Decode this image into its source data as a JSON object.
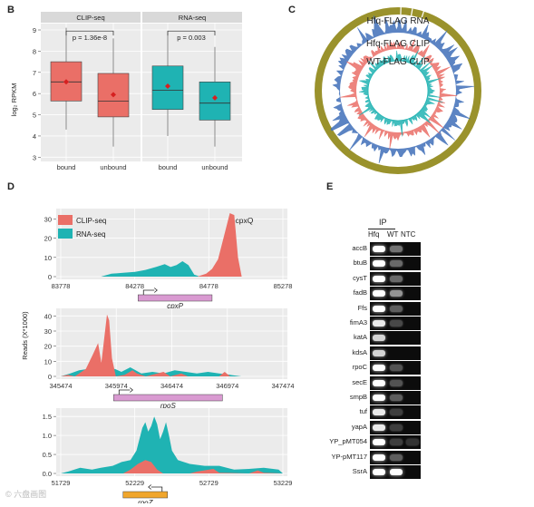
{
  "panels": {
    "B": "B",
    "C": "C",
    "D": "D",
    "E": "E"
  },
  "panel_b": {
    "ylabel": "log₂ RPKM",
    "y_ticks": [
      "3",
      "4",
      "5",
      "6",
      "7",
      "8",
      "9"
    ],
    "facets": [
      {
        "title": "CLIP-seq",
        "pvalue": "p = 1.36e-8",
        "color": "#ea6f67",
        "boxes": [
          {
            "label": "bound",
            "q1": 5.65,
            "median": 6.55,
            "q3": 7.5,
            "min": 4.3,
            "max": 9.1,
            "mean": 6.55
          },
          {
            "label": "unbound",
            "q1": 4.9,
            "median": 5.65,
            "q3": 6.95,
            "min": 3.5,
            "max": 8.6,
            "mean": 5.95
          }
        ]
      },
      {
        "title": "RNA-seq",
        "pvalue": "p = 0.003",
        "color": "#1fb3b3",
        "boxes": [
          {
            "label": "bound",
            "q1": 5.25,
            "median": 6.15,
            "q3": 7.3,
            "min": 4.0,
            "max": 8.9,
            "mean": 6.35
          },
          {
            "label": "unbound",
            "q1": 4.75,
            "median": 5.55,
            "q3": 6.55,
            "min": 3.5,
            "max": 8.2,
            "mean": 5.8
          }
        ]
      }
    ]
  },
  "panel_c": {
    "rings": [
      "Hfq-FLAG RNA",
      "Hfq-FLAG CLIP",
      "WT-FLAG CLIP"
    ],
    "colors": {
      "outer": "#9a922c",
      "rna": "#3f6fb8",
      "clip": "#ea6f67",
      "wt": "#21b3b3"
    }
  },
  "panel_d": {
    "ylabel": "Reads (X*1000)",
    "legend": [
      "CLIP-seq",
      "RNA-seq"
    ],
    "tracks": [
      {
        "y_ticks": [
          "0",
          "10",
          "20",
          "30"
        ],
        "ymax": 33,
        "x_ticks": [
          "83778",
          "84278",
          "84778",
          "85278"
        ],
        "xmin": 83778,
        "xmax": 85278,
        "gene": "cpxP",
        "gene_start": 84300,
        "gene_end": 84800,
        "peak_label": "cpxQ",
        "gene_color": "#d99ad1",
        "rna": [
          [
            83778,
            0
          ],
          [
            84050,
            0
          ],
          [
            84120,
            1.5
          ],
          [
            84200,
            2
          ],
          [
            84280,
            2.5
          ],
          [
            84350,
            3.5
          ],
          [
            84420,
            5
          ],
          [
            84480,
            6.5
          ],
          [
            84520,
            5
          ],
          [
            84560,
            6
          ],
          [
            84600,
            8
          ],
          [
            84640,
            6
          ],
          [
            84680,
            1
          ],
          [
            84720,
            0
          ],
          [
            85278,
            0
          ]
        ],
        "clip": [
          [
            83778,
            0
          ],
          [
            84700,
            0
          ],
          [
            84760,
            1.5
          ],
          [
            84800,
            4
          ],
          [
            84840,
            9
          ],
          [
            84880,
            21
          ],
          [
            84920,
            33
          ],
          [
            84950,
            32
          ],
          [
            84975,
            10
          ],
          [
            85000,
            0
          ],
          [
            85278,
            0
          ]
        ]
      },
      {
        "y_ticks": [
          "0",
          "10",
          "20",
          "30",
          "40"
        ],
        "ymax": 42,
        "x_ticks": [
          "345474",
          "345974",
          "346474",
          "346974",
          "347474"
        ],
        "xmin": 345474,
        "xmax": 347474,
        "gene": "rpoS",
        "gene_start": 345950,
        "gene_end": 346930,
        "gene_color": "#d99ad1",
        "rna": [
          [
            345474,
            0
          ],
          [
            345560,
            2
          ],
          [
            345640,
            4
          ],
          [
            345720,
            5
          ],
          [
            345800,
            6
          ],
          [
            345850,
            3
          ],
          [
            345900,
            2
          ],
          [
            345960,
            5
          ],
          [
            346020,
            3
          ],
          [
            346100,
            6
          ],
          [
            346200,
            2
          ],
          [
            346300,
            3
          ],
          [
            346400,
            2
          ],
          [
            346500,
            4
          ],
          [
            346600,
            3
          ],
          [
            346700,
            2
          ],
          [
            346800,
            3
          ],
          [
            346900,
            2
          ],
          [
            347000,
            1
          ],
          [
            347100,
            0
          ],
          [
            347474,
            0
          ]
        ],
        "clip": [
          [
            345474,
            0
          ],
          [
            345540,
            1
          ],
          [
            345600,
            0
          ],
          [
            345700,
            5
          ],
          [
            345760,
            14
          ],
          [
            345810,
            22
          ],
          [
            345840,
            9
          ],
          [
            345870,
            28
          ],
          [
            345890,
            41
          ],
          [
            345910,
            37
          ],
          [
            345935,
            12
          ],
          [
            345970,
            0
          ],
          [
            346050,
            1
          ],
          [
            346120,
            4
          ],
          [
            346160,
            2
          ],
          [
            346240,
            0
          ],
          [
            346400,
            3
          ],
          [
            346460,
            0
          ],
          [
            346560,
            2
          ],
          [
            346620,
            0
          ],
          [
            346900,
            0
          ],
          [
            346950,
            3
          ],
          [
            347000,
            0
          ],
          [
            347474,
            0
          ]
        ]
      },
      {
        "y_ticks": [
          "0.0",
          "0.5",
          "1.0",
          "1.5"
        ],
        "ymax": 1.6,
        "x_ticks": [
          "51729",
          "52229",
          "52729",
          "53229"
        ],
        "xmin": 51729,
        "xmax": 53229,
        "gene": "rpoZ",
        "gene_start": 52150,
        "gene_end": 52450,
        "gene_color": "#f0a62c",
        "rna": [
          [
            51729,
            0
          ],
          [
            51780,
            0.05
          ],
          [
            51860,
            0.15
          ],
          [
            51940,
            0.1
          ],
          [
            52000,
            0.15
          ],
          [
            52080,
            0.2
          ],
          [
            52140,
            0.3
          ],
          [
            52200,
            0.35
          ],
          [
            52240,
            0.6
          ],
          [
            52280,
            1.2
          ],
          [
            52300,
            1.35
          ],
          [
            52320,
            1.1
          ],
          [
            52340,
            1.25
          ],
          [
            52360,
            1.5
          ],
          [
            52380,
            1.3
          ],
          [
            52400,
            0.9
          ],
          [
            52420,
            1.1
          ],
          [
            52440,
            1.35
          ],
          [
            52460,
            1.0
          ],
          [
            52480,
            0.6
          ],
          [
            52520,
            0.35
          ],
          [
            52600,
            0.25
          ],
          [
            52700,
            0.2
          ],
          [
            52800,
            0.2
          ],
          [
            52900,
            0.1
          ],
          [
            53000,
            0.12
          ],
          [
            53100,
            0.15
          ],
          [
            53200,
            0.1
          ],
          [
            53229,
            0
          ]
        ],
        "clip": [
          [
            51729,
            0
          ],
          [
            52150,
            0
          ],
          [
            52200,
            0.1
          ],
          [
            52250,
            0.25
          ],
          [
            52300,
            0.35
          ],
          [
            52340,
            0.3
          ],
          [
            52380,
            0.1
          ],
          [
            52420,
            0
          ],
          [
            52600,
            0
          ],
          [
            52650,
            0.05
          ],
          [
            52760,
            0.12
          ],
          [
            52800,
            0.02
          ],
          [
            53000,
            0
          ],
          [
            53060,
            0.08
          ],
          [
            53100,
            0.02
          ],
          [
            53229,
            0
          ]
        ]
      }
    ]
  },
  "panel_e": {
    "ip_label": "IP",
    "lanes": [
      "Hfq",
      "WT",
      "NTC"
    ],
    "rows": [
      {
        "gene": "accB",
        "bands": [
          1,
          0.35,
          0
        ]
      },
      {
        "gene": "btuB",
        "bands": [
          1,
          0.3,
          0
        ]
      },
      {
        "gene": "cysT",
        "bands": [
          1,
          0.3,
          0
        ]
      },
      {
        "gene": "fadB",
        "bands": [
          1,
          0.5,
          0
        ]
      },
      {
        "gene": "Ffs",
        "bands": [
          1,
          0.25,
          0
        ]
      },
      {
        "gene": "fimA3",
        "bands": [
          0.9,
          0.15,
          0
        ]
      },
      {
        "gene": "katA",
        "bands": [
          0.8,
          0,
          0
        ]
      },
      {
        "gene": "kdsA",
        "bands": [
          0.8,
          0,
          0
        ]
      },
      {
        "gene": "rpoC",
        "bands": [
          1,
          0.2,
          0
        ]
      },
      {
        "gene": "secE",
        "bands": [
          1,
          0.2,
          0
        ]
      },
      {
        "gene": "smpB",
        "bands": [
          1,
          0.25,
          0
        ]
      },
      {
        "gene": "tuf",
        "bands": [
          0.9,
          0.1,
          0
        ]
      },
      {
        "gene": "yapA",
        "bands": [
          0.9,
          0.1,
          0
        ]
      },
      {
        "gene": "YP_pMT054",
        "bands": [
          1,
          0.1,
          0.05
        ]
      },
      {
        "gene": "YP-pMT117",
        "bands": [
          1,
          0.25,
          0
        ]
      },
      {
        "gene": "SsrA",
        "bands": [
          1,
          1,
          0
        ]
      }
    ]
  },
  "watermark": "© 六盘画图"
}
